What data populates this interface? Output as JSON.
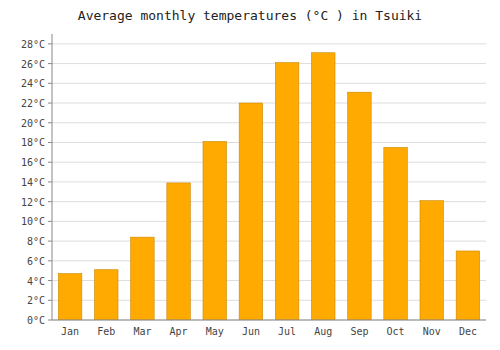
{
  "chart_data": {
    "type": "bar",
    "title": "Average monthly temperatures (°C ) in Tsuiki",
    "categories": [
      "Jan",
      "Feb",
      "Mar",
      "Apr",
      "May",
      "Jun",
      "Jul",
      "Aug",
      "Sep",
      "Oct",
      "Nov",
      "Dec"
    ],
    "values": [
      4.7,
      5.1,
      8.4,
      13.9,
      18.1,
      22.0,
      26.1,
      27.1,
      23.1,
      17.5,
      12.1,
      7.0
    ],
    "color": "#FFAA00",
    "ylim": [
      0,
      29
    ],
    "yticks": [
      {
        "value": 0,
        "label": "0°C"
      },
      {
        "value": 2,
        "label": "2°C"
      },
      {
        "value": 4,
        "label": "4°C"
      },
      {
        "value": 6,
        "label": "6°C"
      },
      {
        "value": 8,
        "label": "8°C"
      },
      {
        "value": 10,
        "label": "10°C"
      },
      {
        "value": 12,
        "label": "12°C"
      },
      {
        "value": 14,
        "label": "14°C"
      },
      {
        "value": 16,
        "label": "16°C"
      },
      {
        "value": 18,
        "label": "18°C"
      },
      {
        "value": 20,
        "label": "20°C"
      },
      {
        "value": 22,
        "label": "22°C"
      },
      {
        "value": 24,
        "label": "24°C"
      },
      {
        "value": 26,
        "label": "26°C"
      },
      {
        "value": 28,
        "label": "28°C"
      }
    ],
    "grid": true
  }
}
